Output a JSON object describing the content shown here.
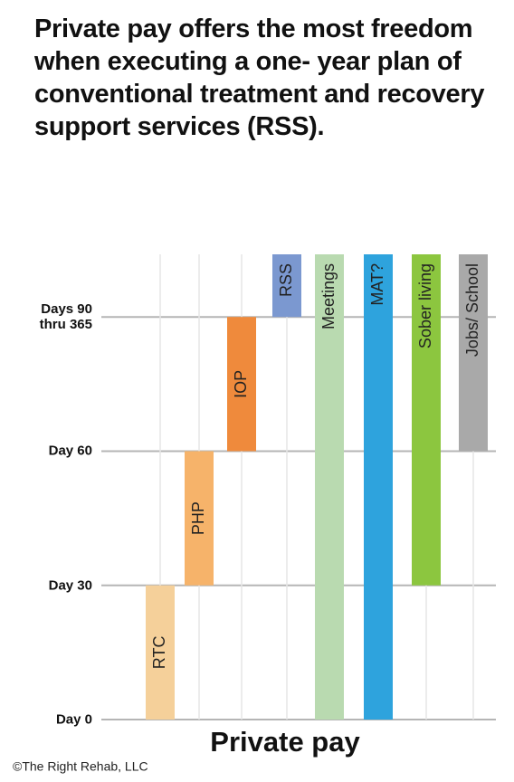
{
  "chart_data": {
    "type": "range-bar",
    "title": "Private pay offers the most freedom when executing a one- year plan of conventional treatment and recovery support services (RSS).",
    "x_label": "Private pay",
    "credit": "©The Right Rehab, LLC",
    "ylim": [
      0,
      104
    ],
    "yticks": [
      {
        "value": 0,
        "label": "Day 0"
      },
      {
        "value": 30,
        "label": "Day 30"
      },
      {
        "value": 60,
        "label": "Day 60"
      },
      {
        "value": 90,
        "label": "Days 90 thru 365"
      }
    ],
    "grid": true,
    "bars": [
      {
        "label": "RTC",
        "start": 0,
        "end": 30,
        "color": "#f5d09a"
      },
      {
        "label": "PHP",
        "start": 30,
        "end": 60,
        "color": "#f6b36a"
      },
      {
        "label": "IOP",
        "start": 60,
        "end": 90,
        "color": "#ef8a3c"
      },
      {
        "label": "RSS",
        "start": 90,
        "end": 104,
        "color": "#7b98d0"
      },
      {
        "label": "Meetings",
        "start": 0,
        "end": 104,
        "color": "#b9dab0"
      },
      {
        "label": "MAT?",
        "start": 0,
        "end": 104,
        "color": "#2ea3dd"
      },
      {
        "label": "Sober living",
        "start": 30,
        "end": 104,
        "color": "#8cc63f"
      },
      {
        "label": "Jobs/ School",
        "start": 60,
        "end": 104,
        "color": "#a9a9a9"
      }
    ]
  }
}
